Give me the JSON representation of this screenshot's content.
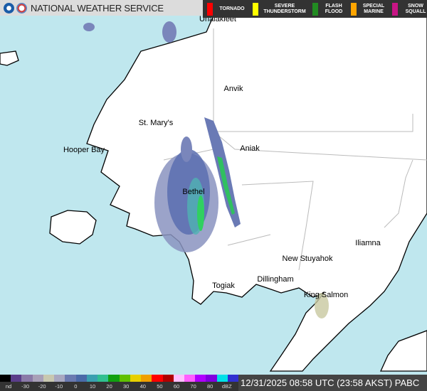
{
  "header": {
    "title": "NATIONAL WEATHER SERVICE",
    "logos": [
      "noaa-logo",
      "nws-logo"
    ],
    "warnings": [
      {
        "label": "TORNADO",
        "color": "#ff0000"
      },
      {
        "label": "SEVERE THUNDERSTORM",
        "color": "#ffff00"
      },
      {
        "label": "FLASH FLOOD",
        "color": "#228b22"
      },
      {
        "label": "SPECIAL MARINE",
        "color": "#ffa500"
      },
      {
        "label": "SNOW SQUALL",
        "color": "#c71585"
      }
    ]
  },
  "map": {
    "land_color": "#ffffff",
    "water_color": "#bfe7ee",
    "cities": [
      {
        "name": "Unalakleet"
      },
      {
        "name": "Anvik"
      },
      {
        "name": "St. Mary's"
      },
      {
        "name": "Aniak"
      },
      {
        "name": "Hooper Bay"
      },
      {
        "name": "Bethel"
      },
      {
        "name": "Iliamna"
      },
      {
        "name": "New Stuyahok"
      },
      {
        "name": "Dillingham"
      },
      {
        "name": "Togiak"
      },
      {
        "name": "King Salmon"
      }
    ]
  },
  "scale": {
    "labels": [
      "nd",
      "-30",
      "-20",
      "-10",
      "0",
      "10",
      "20",
      "30",
      "40",
      "50",
      "60",
      "70",
      "80",
      "dBZ"
    ],
    "colors": [
      "#000000",
      "#5a3d8a",
      "#8a7aa8",
      "#a8a0b8",
      "#c8c8b0",
      "#a8a8c0",
      "#6a7ab0",
      "#4a6aa8",
      "#3aa0b0",
      "#30c090",
      "#10a010",
      "#60c000",
      "#e8d000",
      "#f0a000",
      "#ff0000",
      "#b00000",
      "#ffc0ff",
      "#ff60ff",
      "#b000ff",
      "#8000e0",
      "#00e0e8",
      "#3030d0"
    ]
  },
  "timestamp": "12/31/2025 08:58 UTC (23:58 AKST)  PABC"
}
